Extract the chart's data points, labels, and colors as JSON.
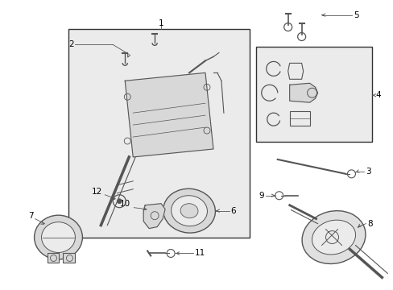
{
  "background_color": "#ffffff",
  "fig_width": 4.89,
  "fig_height": 3.6,
  "dpi": 100,
  "line_color": "#555555",
  "dark_color": "#333333",
  "fill_light": "#ebebeb",
  "fill_box": "#e8e8e8",
  "label_fontsize": 7.5
}
